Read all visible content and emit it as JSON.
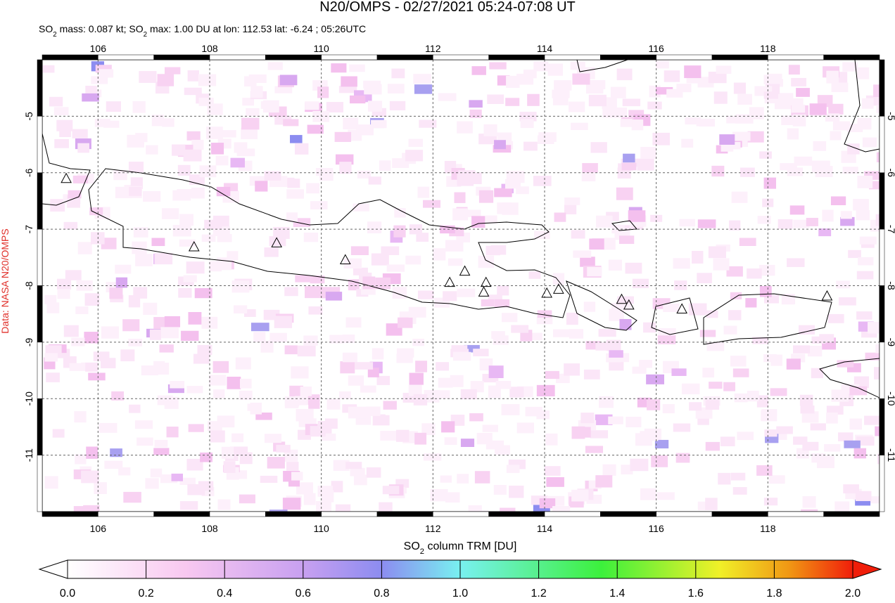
{
  "chart_data": {
    "type": "map",
    "title": "N20/OMPS - 02/27/2021 05:24-07:08 UT",
    "subtitle_parts": [
      "SO",
      "2",
      " mass: 0.087 kt; SO",
      "2",
      " max: 1.00 DU at lon: 112.53 lat: -6.24 ; 05:26UTC"
    ],
    "side_label": "Data: NASA N20/OMPS",
    "xlim": [
      105,
      120
    ],
    "ylim": [
      -12,
      -4
    ],
    "xticks": [
      106,
      108,
      110,
      112,
      114,
      116,
      118
    ],
    "yticks": [
      -5,
      -6,
      -7,
      -8,
      -9,
      -10,
      -11
    ],
    "grid": true,
    "volcanoes": {
      "lon": [
        105.43,
        107.72,
        109.2,
        110.43,
        112.3,
        112.57,
        112.95,
        112.91,
        114.04,
        114.25,
        115.38,
        115.51,
        116.46,
        119.06
      ],
      "lat": [
        -6.1,
        -7.31,
        -7.24,
        -7.54,
        -7.94,
        -7.74,
        -7.94,
        -8.11,
        -8.13,
        -8.06,
        -8.24,
        -8.34,
        -8.41,
        -8.18
      ]
    },
    "colorbar": {
      "label_parts": [
        "SO",
        "2",
        " column TRM [DU]"
      ],
      "lim": [
        0,
        2
      ],
      "ticks": [
        {
          "value": 0,
          "label": "0.0"
        },
        0.2,
        0.4,
        0.6,
        0.8,
        {
          "value": 1,
          "label": "1.0"
        },
        1.2,
        1.4,
        1.6,
        1.8,
        {
          "value": 2,
          "label": "2.0"
        }
      ]
    }
  }
}
